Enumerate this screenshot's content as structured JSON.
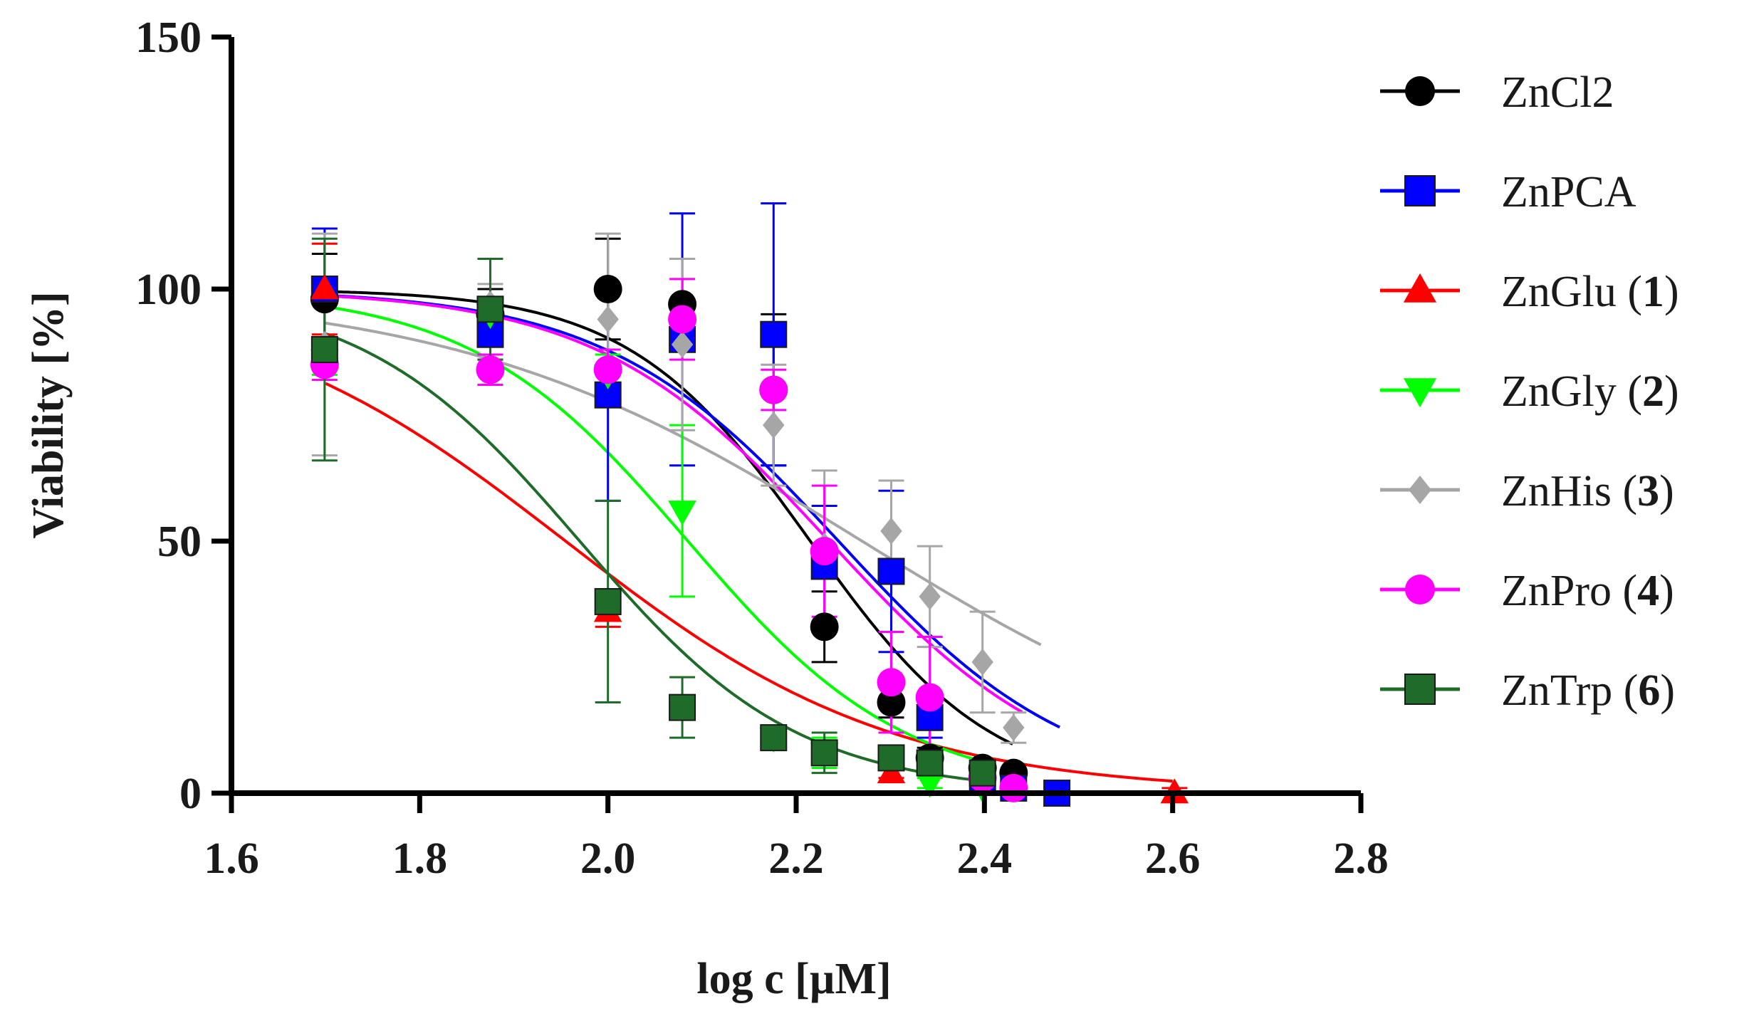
{
  "chart_data": {
    "type": "scatter",
    "title": "",
    "xlabel": "log c [µM]",
    "ylabel": "Viability [%]",
    "xlim": [
      1.6,
      2.8
    ],
    "ylim": [
      0,
      150
    ],
    "x_ticks": [
      "1.6",
      "1.8",
      "2.0",
      "2.2",
      "2.4",
      "2.6",
      "2.8"
    ],
    "y_ticks": [
      "0",
      "50",
      "100",
      "150"
    ],
    "grid": false,
    "legend_position": "right",
    "series": [
      {
        "name": "ZnCl2",
        "label_main": "ZnCl2",
        "label_num": "",
        "label_end": "",
        "color": "#000000",
        "marker": "circle",
        "ic50": 2.215,
        "hill": 18,
        "curve_x": [
          1.7,
          2.43
        ],
        "points": [
          {
            "x": 1.699,
            "y": 98,
            "err": 9
          },
          {
            "x": 1.875,
            "y": 95,
            "err": 5
          },
          {
            "x": 2.0,
            "y": 100,
            "err": 10
          },
          {
            "x": 2.079,
            "y": 97,
            "err": 9
          },
          {
            "x": 2.176,
            "y": 80,
            "err": 15
          },
          {
            "x": 2.23,
            "y": 33,
            "err": 7
          },
          {
            "x": 2.301,
            "y": 18,
            "err": 3
          },
          {
            "x": 2.342,
            "y": 7,
            "err": 2
          },
          {
            "x": 2.398,
            "y": 5,
            "err": 1
          },
          {
            "x": 2.431,
            "y": 4,
            "err": 1
          }
        ]
      },
      {
        "name": "ZnPCA",
        "label_main": "ZnPCA",
        "label_num": "",
        "label_end": "",
        "color": "#0000ff",
        "marker": "square",
        "ic50": 2.245,
        "hill": 14,
        "curve_x": [
          1.7,
          2.48
        ],
        "points": [
          {
            "x": 1.699,
            "y": 100,
            "err": 12
          },
          {
            "x": 1.875,
            "y": 91,
            "err": 5
          },
          {
            "x": 2.0,
            "y": 79,
            "err": 21
          },
          {
            "x": 2.079,
            "y": 90,
            "err": 25
          },
          {
            "x": 2.176,
            "y": 91,
            "err": 26
          },
          {
            "x": 2.23,
            "y": 45,
            "err": 12
          },
          {
            "x": 2.301,
            "y": 44,
            "err": 16
          },
          {
            "x": 2.342,
            "y": 15,
            "err": 4
          },
          {
            "x": 2.398,
            "y": 3,
            "err": 1
          },
          {
            "x": 2.431,
            "y": 1,
            "err": 1
          },
          {
            "x": 2.477,
            "y": 0,
            "err": 1
          }
        ]
      },
      {
        "name": "ZnGlu (1)",
        "label_main": "ZnGlu (",
        "label_num": "1",
        "label_end": ")",
        "color": "#ff0000",
        "marker": "triangle-up",
        "ic50": 1.955,
        "hill": 10,
        "curve_x": [
          1.7,
          2.6
        ],
        "points": [
          {
            "x": 1.699,
            "y": 100,
            "err": 9
          },
          {
            "x": 2.0,
            "y": 36,
            "err": 3
          },
          {
            "x": 2.301,
            "y": 4,
            "err": 1
          },
          {
            "x": 2.602,
            "y": 0,
            "err": 1
          }
        ]
      },
      {
        "name": "ZnGly (2)",
        "label_main": "ZnGly (",
        "label_num": "2",
        "label_end": ")",
        "color": "#00ff00",
        "marker": "triangle-down",
        "ic50": 2.085,
        "hill": 15,
        "curve_x": [
          1.7,
          2.4
        ],
        "points": [
          {
            "x": 1.699,
            "y": 86,
            "err": 3
          },
          {
            "x": 1.875,
            "y": 95,
            "err": 3
          },
          {
            "x": 2.0,
            "y": 83,
            "err": 4
          },
          {
            "x": 2.079,
            "y": 56,
            "err": 17
          },
          {
            "x": 2.176,
            "y": 11,
            "err": 2
          },
          {
            "x": 2.23,
            "y": 8,
            "err": 3
          },
          {
            "x": 2.342,
            "y": 2,
            "err": 1
          },
          {
            "x": 2.398,
            "y": 1,
            "err": 1
          }
        ]
      },
      {
        "name": "ZnHis (3)",
        "label_main": "ZnHis (",
        "label_num": "3",
        "label_end": ")",
        "color": "#a6a6a6",
        "marker": "diamond",
        "ic50": 2.27,
        "hill": 8,
        "curve_x": [
          1.7,
          2.46
        ],
        "points": [
          {
            "x": 1.699,
            "y": 89,
            "err": 22
          },
          {
            "x": 1.875,
            "y": 97,
            "err": 4
          },
          {
            "x": 2.0,
            "y": 94,
            "err": 17
          },
          {
            "x": 2.079,
            "y": 89,
            "err": 17
          },
          {
            "x": 2.176,
            "y": 73,
            "err": 12
          },
          {
            "x": 2.23,
            "y": 49,
            "err": 15
          },
          {
            "x": 2.301,
            "y": 52,
            "err": 10
          },
          {
            "x": 2.342,
            "y": 39,
            "err": 10
          },
          {
            "x": 2.398,
            "y": 26,
            "err": 10
          },
          {
            "x": 2.431,
            "y": 13,
            "err": 3
          }
        ]
      },
      {
        "name": "ZnPro (4)",
        "label_main": "ZnPro (",
        "label_num": "4",
        "label_end": ")",
        "color": "#ff00ff",
        "marker": "circle",
        "ic50": 2.235,
        "hill": 14,
        "curve_x": [
          1.7,
          2.44
        ],
        "points": [
          {
            "x": 1.699,
            "y": 85,
            "err": 3
          },
          {
            "x": 1.875,
            "y": 84,
            "err": 3
          },
          {
            "x": 2.0,
            "y": 84,
            "err": 4
          },
          {
            "x": 2.079,
            "y": 94,
            "err": 8
          },
          {
            "x": 2.176,
            "y": 80,
            "err": 4
          },
          {
            "x": 2.23,
            "y": 48,
            "err": 13
          },
          {
            "x": 2.301,
            "y": 22,
            "err": 10
          },
          {
            "x": 2.342,
            "y": 19,
            "err": 12
          },
          {
            "x": 2.398,
            "y": 3,
            "err": 1
          },
          {
            "x": 2.431,
            "y": 1,
            "err": 1
          }
        ]
      },
      {
        "name": "ZnTrp (6)",
        "label_main": "ZnTrp (",
        "label_num": "6",
        "label_end": ")",
        "color": "#1f6b2a",
        "marker": "square",
        "ic50": 1.97,
        "hill": 15,
        "curve_x": [
          1.7,
          2.41
        ],
        "points": [
          {
            "x": 1.699,
            "y": 88,
            "err": 22
          },
          {
            "x": 1.875,
            "y": 96,
            "err": 10
          },
          {
            "x": 2.0,
            "y": 38,
            "err": 20
          },
          {
            "x": 2.079,
            "y": 17,
            "err": 6
          },
          {
            "x": 2.176,
            "y": 11,
            "err": 2
          },
          {
            "x": 2.23,
            "y": 8,
            "err": 4
          },
          {
            "x": 2.301,
            "y": 7,
            "err": 1
          },
          {
            "x": 2.342,
            "y": 6,
            "err": 1
          },
          {
            "x": 2.398,
            "y": 4,
            "err": 1
          }
        ]
      }
    ]
  }
}
